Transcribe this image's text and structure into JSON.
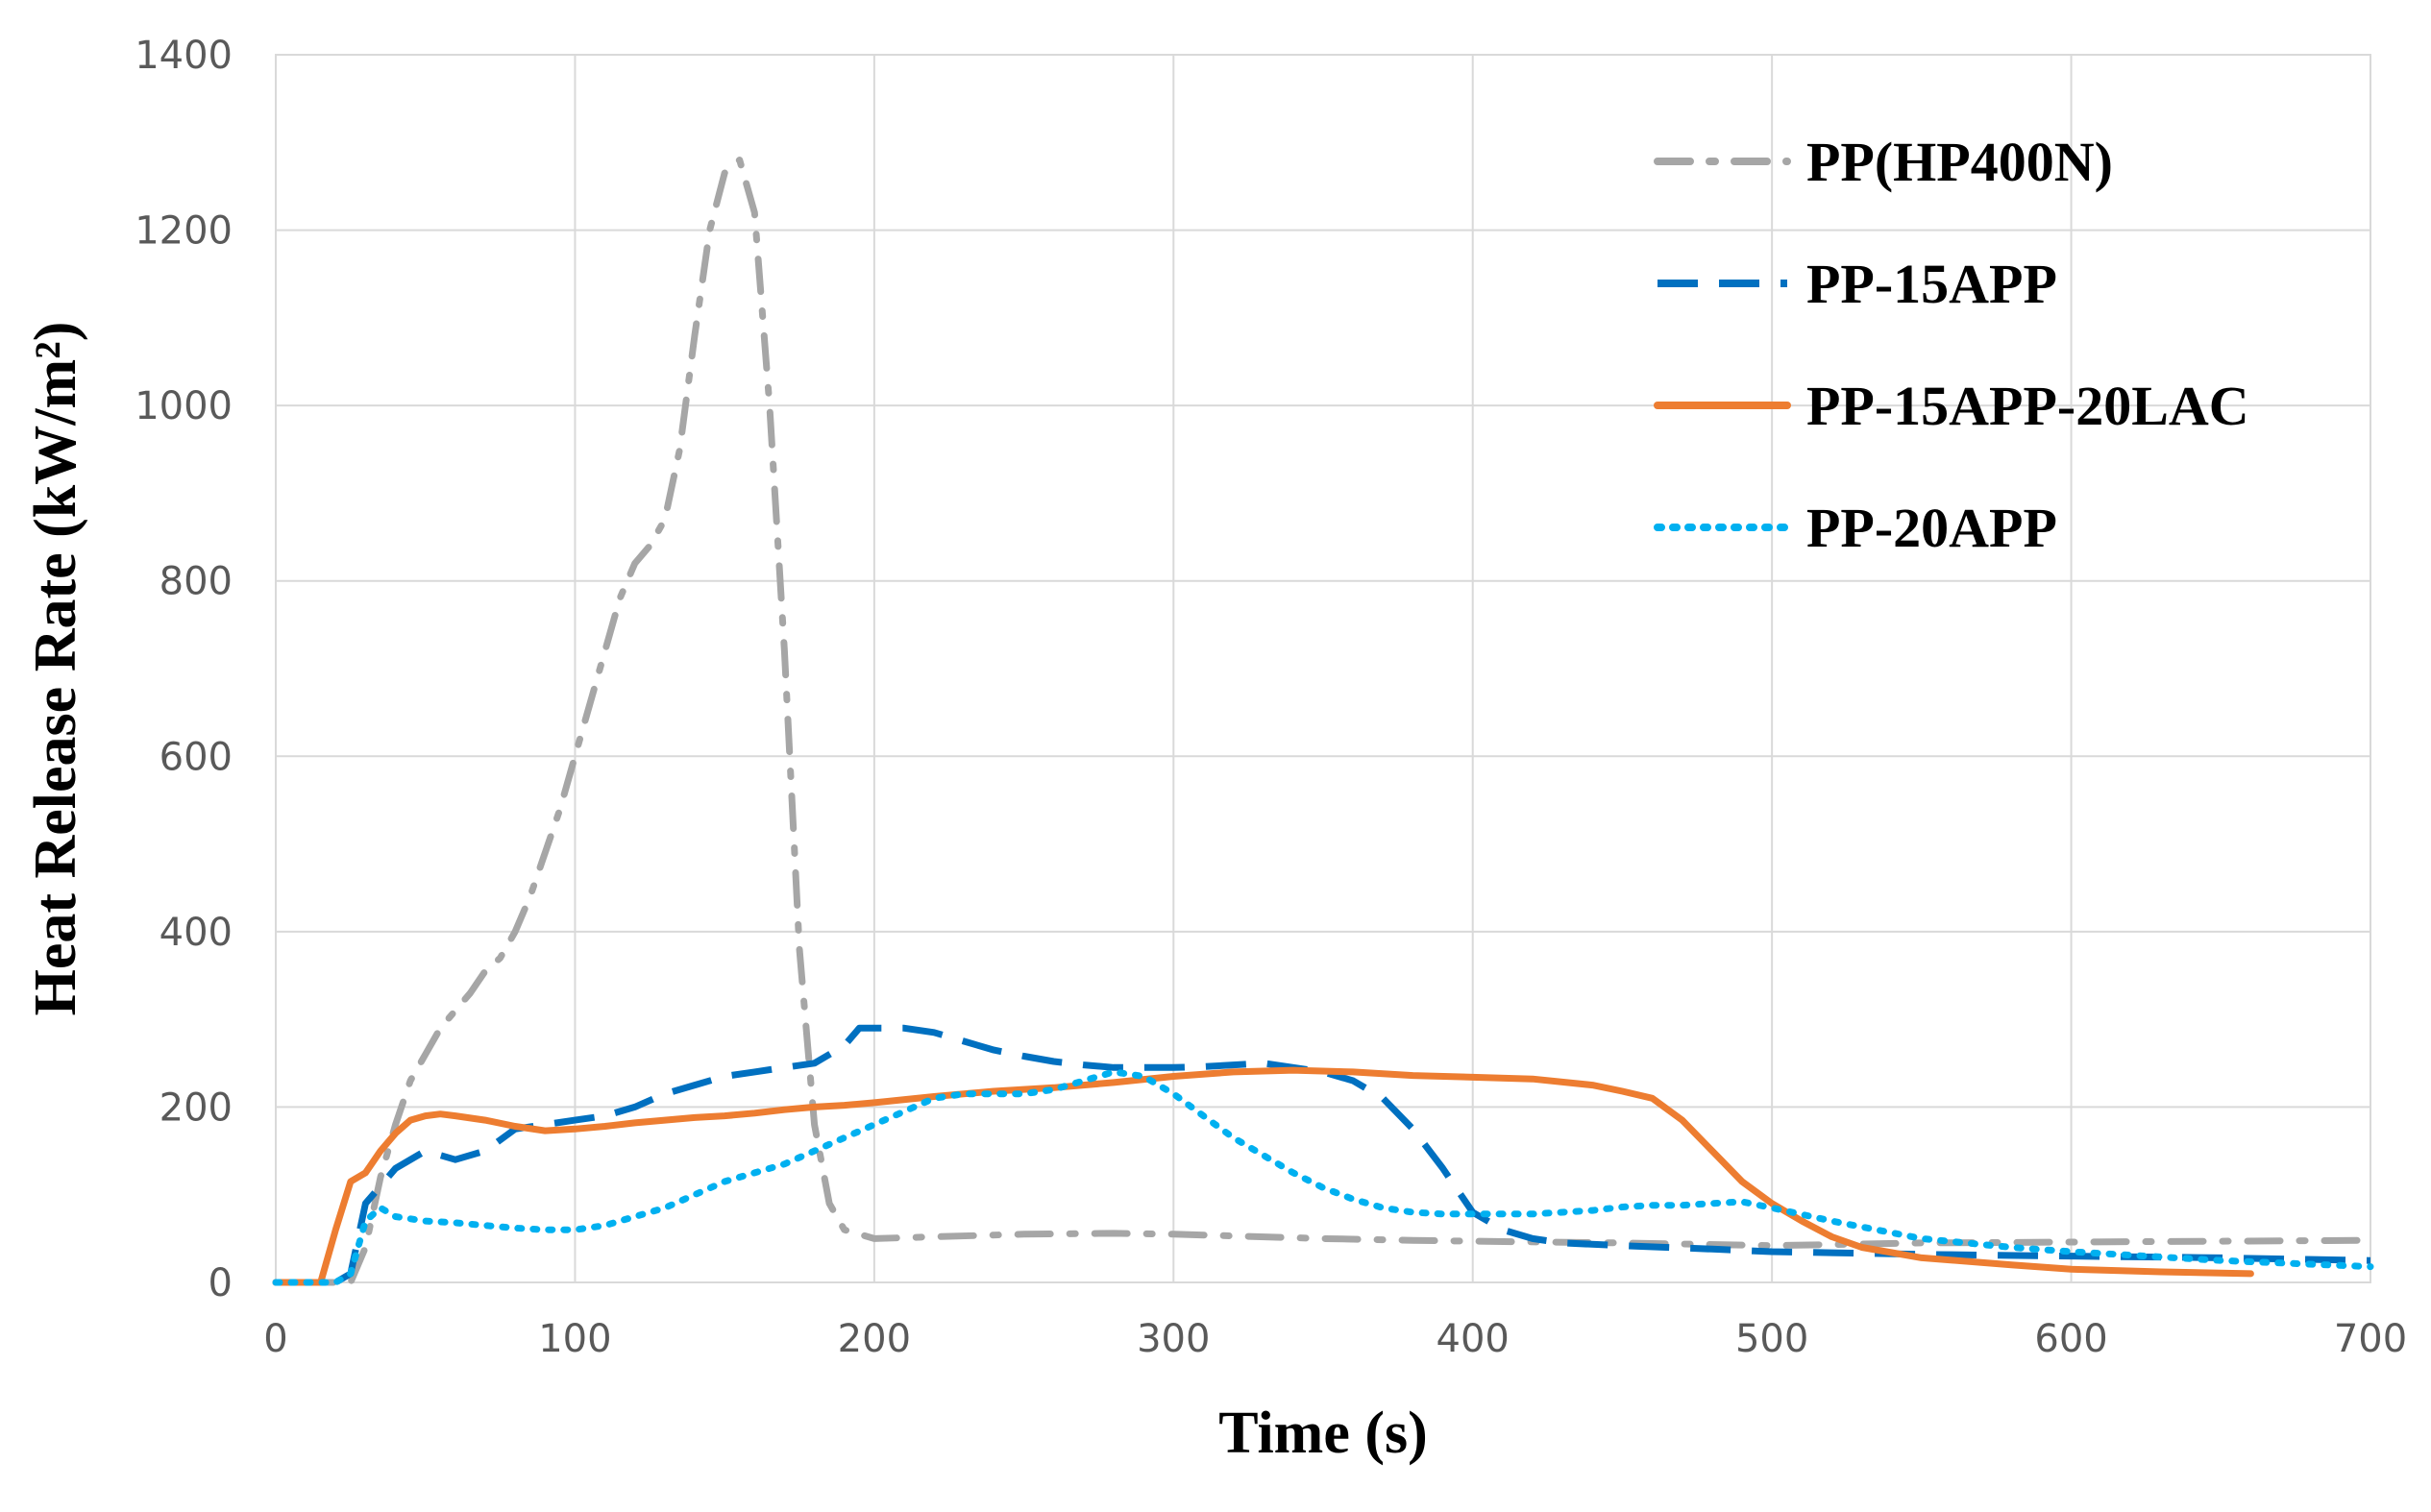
{
  "chart_data": {
    "type": "line",
    "title": "",
    "xlabel": "Time  (s)",
    "ylabel": "Heat Release Rate  (kW/m²)",
    "xlim": [
      0,
      700
    ],
    "ylim": [
      0,
      1400
    ],
    "xticks": [
      0,
      100,
      200,
      300,
      400,
      500,
      600,
      700
    ],
    "yticks": [
      0,
      200,
      400,
      600,
      800,
      1000,
      1200,
      1400
    ],
    "grid": true,
    "legend_position": "top-right",
    "series": [
      {
        "name": "PP(HP400N)",
        "color": "#a6a6a6",
        "style": "dash-dot",
        "x": [
          0,
          25,
          30,
          35,
          40,
          45,
          50,
          55,
          60,
          65,
          70,
          75,
          80,
          85,
          90,
          95,
          100,
          105,
          110,
          115,
          120,
          125,
          130,
          135,
          140,
          145,
          150,
          155,
          160,
          165,
          170,
          175,
          180,
          185,
          190,
          200,
          220,
          250,
          280,
          300,
          320,
          350,
          380,
          400,
          450,
          500,
          550,
          600,
          650,
          700
        ],
        "y": [
          0,
          0,
          40,
          120,
          180,
          230,
          260,
          290,
          310,
          330,
          355,
          370,
          400,
          440,
          490,
          540,
          600,
          660,
          720,
          780,
          820,
          840,
          870,
          950,
          1080,
          1200,
          1265,
          1280,
          1220,
          1000,
          720,
          380,
          180,
          90,
          60,
          50,
          52,
          55,
          56,
          55,
          53,
          50,
          48,
          47,
          45,
          42,
          45,
          46,
          47,
          48
        ]
      },
      {
        "name": "PP-15APP",
        "color": "#0070c0",
        "style": "dashed",
        "x": [
          0,
          20,
          25,
          30,
          35,
          40,
          50,
          60,
          70,
          80,
          90,
          100,
          110,
          120,
          130,
          140,
          150,
          160,
          170,
          180,
          190,
          195,
          200,
          210,
          220,
          230,
          240,
          250,
          260,
          270,
          280,
          290,
          300,
          310,
          320,
          330,
          340,
          350,
          360,
          370,
          380,
          390,
          400,
          410,
          420,
          430,
          450,
          480,
          500,
          550,
          600,
          650,
          700
        ],
        "y": [
          0,
          0,
          10,
          90,
          110,
          130,
          150,
          140,
          150,
          175,
          180,
          185,
          190,
          200,
          215,
          225,
          235,
          240,
          245,
          250,
          270,
          290,
          290,
          290,
          285,
          275,
          265,
          258,
          252,
          248,
          245,
          245,
          245,
          246,
          248,
          250,
          245,
          240,
          230,
          210,
          175,
          130,
          80,
          60,
          50,
          45,
          42,
          38,
          35,
          32,
          30,
          28,
          25
        ]
      },
      {
        "name": "PP-15APP-20LAC",
        "color": "#ed7d31",
        "style": "solid",
        "x": [
          0,
          10,
          15,
          20,
          25,
          30,
          35,
          40,
          45,
          50,
          55,
          60,
          70,
          80,
          90,
          100,
          110,
          120,
          130,
          140,
          150,
          160,
          170,
          180,
          190,
          200,
          220,
          240,
          260,
          280,
          300,
          320,
          340,
          360,
          380,
          400,
          420,
          440,
          450,
          460,
          470,
          480,
          490,
          500,
          510,
          520,
          530,
          550,
          580,
          600,
          630,
          660
        ],
        "y": [
          0,
          0,
          0,
          60,
          115,
          125,
          150,
          170,
          185,
          190,
          192,
          190,
          185,
          178,
          173,
          175,
          178,
          182,
          185,
          188,
          190,
          193,
          197,
          200,
          202,
          205,
          212,
          218,
          222,
          228,
          235,
          240,
          242,
          240,
          236,
          234,
          232,
          225,
          218,
          210,
          185,
          150,
          115,
          90,
          70,
          52,
          40,
          28,
          20,
          15,
          12,
          10
        ]
      },
      {
        "name": "PP-20APP",
        "color": "#00b0f0",
        "style": "dotted",
        "x": [
          0,
          20,
          25,
          30,
          35,
          40,
          50,
          60,
          70,
          80,
          90,
          100,
          110,
          120,
          130,
          140,
          150,
          160,
          170,
          180,
          190,
          200,
          210,
          220,
          230,
          240,
          250,
          260,
          270,
          280,
          290,
          300,
          310,
          320,
          330,
          340,
          350,
          360,
          370,
          380,
          390,
          400,
          420,
          440,
          450,
          460,
          470,
          480,
          490,
          500,
          520,
          550,
          580,
          600,
          650,
          700
        ],
        "y": [
          0,
          0,
          10,
          70,
          85,
          75,
          70,
          68,
          65,
          62,
          60,
          60,
          65,
          75,
          85,
          100,
          115,
          125,
          135,
          150,
          165,
          180,
          195,
          210,
          215,
          215,
          215,
          220,
          230,
          240,
          235,
          215,
          190,
          165,
          145,
          125,
          108,
          95,
          85,
          80,
          78,
          78,
          78,
          82,
          86,
          88,
          88,
          90,
          92,
          85,
          70,
          50,
          40,
          35,
          25,
          18
        ]
      }
    ]
  }
}
